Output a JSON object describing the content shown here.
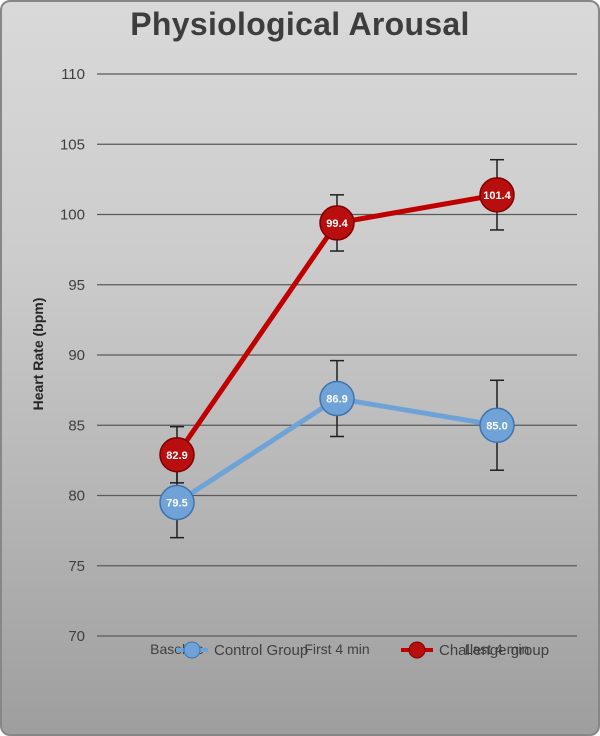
{
  "title": "Physiological Arousal",
  "chart_data": {
    "type": "line",
    "title": "Physiological Arousal",
    "ylabel": "Heart Rate (bpm)",
    "xlabel": "",
    "categories": [
      "Baseline",
      "First 4 min",
      "Last 4 min"
    ],
    "ylim": [
      70,
      110
    ],
    "ytick_step": 5,
    "grid": true,
    "legend_position": "bottom",
    "data_labels": true,
    "error_bars": true,
    "series": [
      {
        "name": "Control Group",
        "values": [
          79.5,
          86.9,
          85.0
        ],
        "errors": [
          2.5,
          2.7,
          3.2
        ],
        "color": "#6FA3D8",
        "marker_fill": "#6FA3D8",
        "marker_stroke": "#3E74AC",
        "label_color": "#FFFFFF"
      },
      {
        "name": "Challenge group",
        "values": [
          82.9,
          99.4,
          101.4
        ],
        "errors": [
          2.0,
          2.0,
          2.5
        ],
        "color": "#C00000",
        "marker_fill": "#B90E0E",
        "marker_stroke": "#7E0000",
        "label_color": "#FFFFFF"
      }
    ]
  },
  "colors": {
    "background_top": "#D9D9D9",
    "background_bottom": "#9E9E9E",
    "gridline": "#5A5A5A",
    "text": "#3F3F3F",
    "error_bar": "#1F1F1F"
  }
}
